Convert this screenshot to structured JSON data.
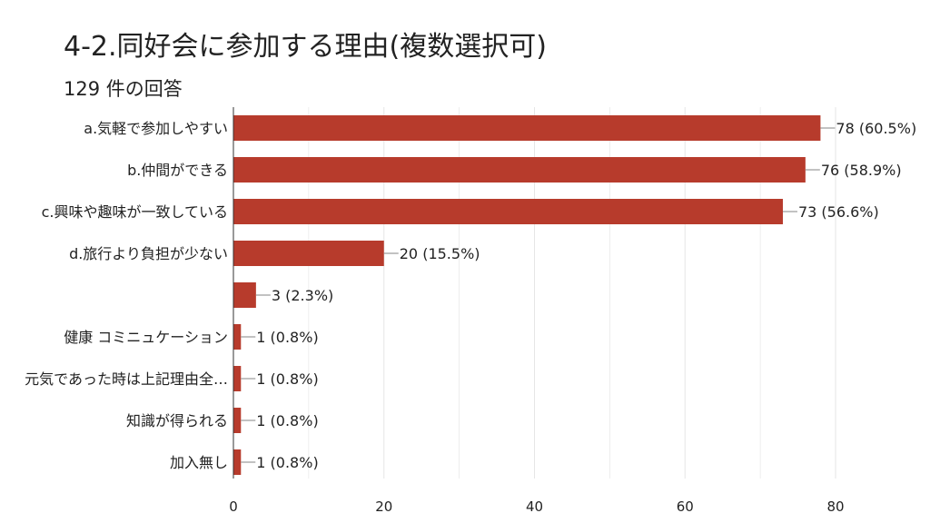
{
  "header": {
    "title": "4-2.同好会に参加する理由(複数選択可)",
    "subtitle": "129 件の回答"
  },
  "chart_data": {
    "type": "bar",
    "orientation": "horizontal",
    "title": "4-2.同好会に参加する理由(複数選択可)",
    "subtitle": "129 件の回答",
    "categories": [
      "a.気軽で参加しやすい",
      "b.仲間ができる",
      "c.興味や趣味が一致している",
      "d.旅行より負担が少ない",
      "",
      "健康 コミニュケーション",
      "元気であった時は上記理由全…",
      "知識が得られる",
      "加入無し"
    ],
    "values": [
      78,
      76,
      73,
      20,
      3,
      1,
      1,
      1,
      1
    ],
    "value_labels": [
      "78 (60.5%)",
      "76 (58.9%)",
      "73 (56.6%)",
      "20 (15.5%)",
      "3 (2.3%)",
      "1 (0.8%)",
      "1 (0.8%)",
      "1 (0.8%)",
      "1 (0.8%)"
    ],
    "x_ticks": [
      0,
      20,
      40,
      60,
      80
    ],
    "xlim": [
      0,
      80
    ],
    "grid": true,
    "bar_color": "#b73b2c",
    "grid_color": "#e6e6e6",
    "axis_color": "#333333"
  }
}
